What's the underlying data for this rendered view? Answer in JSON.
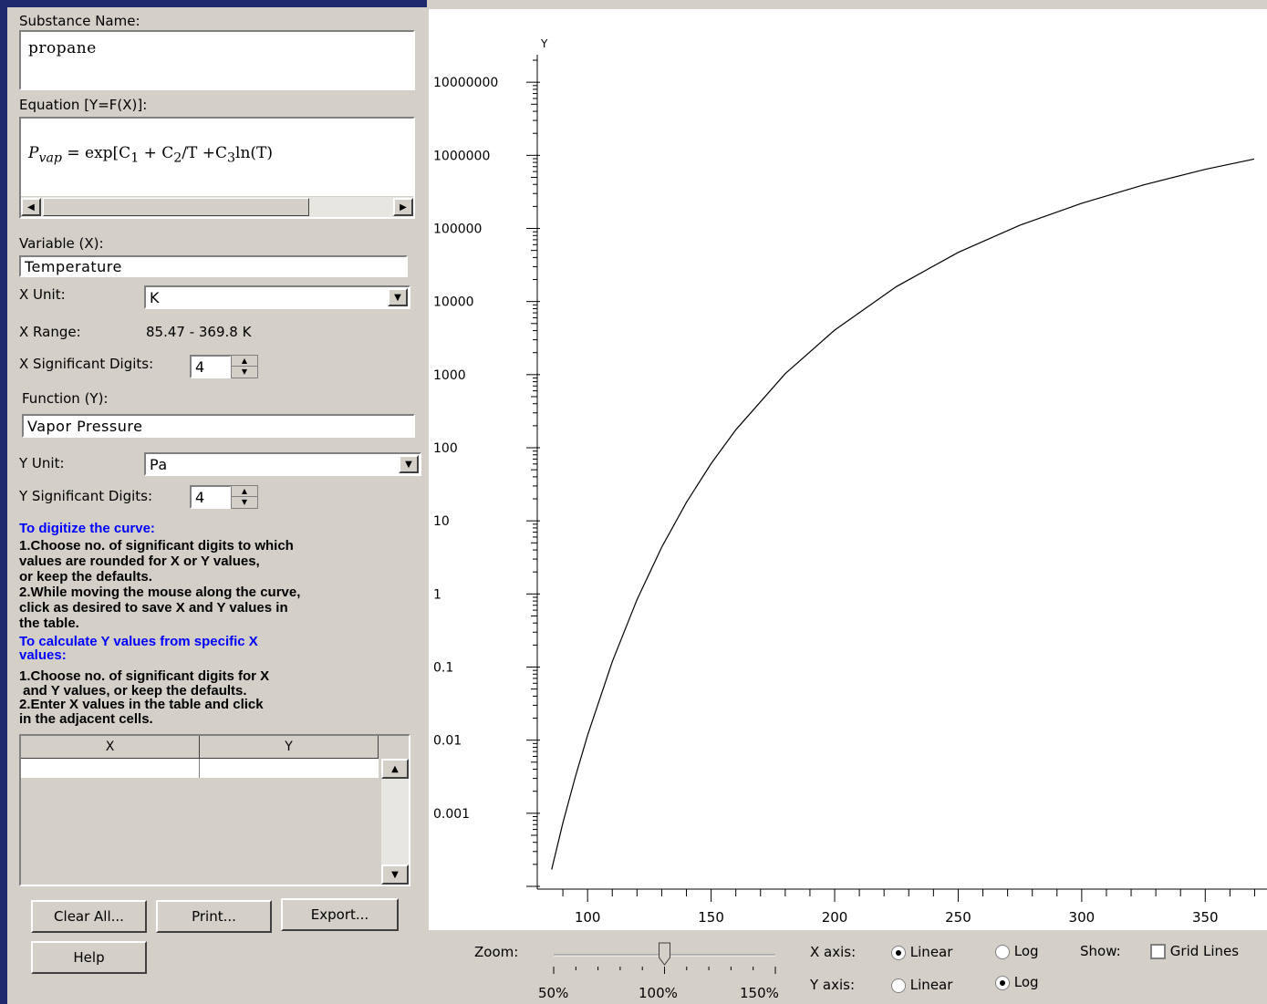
{
  "substance": {
    "label": "Substance Name:",
    "value": "propane"
  },
  "equation": {
    "label": "Equation [Y=F(X)]:",
    "lhs": "P",
    "lhs_sub": "vap",
    "eq": " = ",
    "rhs_a": "exp[C",
    "rhs_a_sub": "1",
    "rhs_b": " + C",
    "rhs_b_sub": "2",
    "rhs_c": "/T +C",
    "rhs_c_sub": "3",
    "rhs_d": "ln(T)"
  },
  "variable": {
    "label": "Variable (X):",
    "value": "Temperature"
  },
  "x_unit": {
    "label": "X Unit:",
    "value": "K"
  },
  "x_range": {
    "label": "X Range:",
    "value": "85.47 - 369.8 K"
  },
  "x_sig": {
    "label": "X Significant Digits:",
    "value": "4"
  },
  "function": {
    "label": "Function (Y):",
    "value": "Vapor Pressure"
  },
  "y_unit": {
    "label": "Y Unit:",
    "value": "Pa"
  },
  "y_sig": {
    "label": "Y Significant Digits:",
    "value": "4"
  },
  "instructions": {
    "digitize_title": "To digitize the curve:",
    "digitize_body": "1.Choose no. of significant digits to which\nvalues are rounded for X or Y values,\nor keep the defaults.\n2.While moving the mouse along the curve,\nclick as desired to save X and Y values in\nthe table.",
    "calc_title": "To calculate Y values from specific X\nvalues:",
    "calc_body": "1.Choose no. of significant digits for X\n and Y values, or keep the defaults.\n2.Enter X values in the table and click\nin the adjacent cells."
  },
  "table": {
    "col_x": "X",
    "col_y": "Y"
  },
  "buttons": {
    "clear": "Clear All...",
    "print": "Print...",
    "export": "Export...",
    "help": "Help"
  },
  "controls": {
    "zoom_label": "Zoom:",
    "zoom_value": 100,
    "zoom_ticks": [
      "50%",
      "100%",
      "150%"
    ],
    "x_axis_label": "X axis:",
    "y_axis_label": "Y axis:",
    "linear": "Linear",
    "log": "Log",
    "x_axis_mode": "Linear",
    "y_axis_mode": "Log",
    "show_label": "Show:",
    "grid_lines": "Grid Lines",
    "grid_checked": false
  },
  "chart_data": {
    "type": "line",
    "xlabel": "",
    "ylabel": "Y",
    "x_scale": "linear",
    "y_scale": "log",
    "grid": false,
    "xlim": [
      80,
      375
    ],
    "ylim": [
      0.0001,
      100000000
    ],
    "x_ticks": [
      100,
      150,
      200,
      250,
      300,
      350
    ],
    "y_ticks": [
      0.001,
      0.01,
      0.1,
      1,
      10,
      100,
      1000,
      10000,
      100000,
      1000000,
      10000000
    ],
    "y_tick_labels": [
      "0.001",
      "0.01",
      "0.1",
      "1",
      "10",
      "100",
      "1000",
      "10000",
      "100000",
      "1000000",
      "10000000"
    ],
    "series": [
      {
        "x": [
          85.47,
          90,
          95,
          100,
          110,
          120,
          130,
          140,
          150,
          160,
          180,
          200,
          225,
          250,
          275,
          300,
          325,
          350,
          369.8
        ],
        "y": [
          0.00017,
          0.00074,
          0.0031,
          0.0117,
          0.119,
          0.833,
          4.35,
          17.9,
          60.7,
          176,
          1030,
          4070,
          16000,
          47000,
          111000,
          221000,
          393000,
          643000,
          890000
        ]
      }
    ]
  }
}
